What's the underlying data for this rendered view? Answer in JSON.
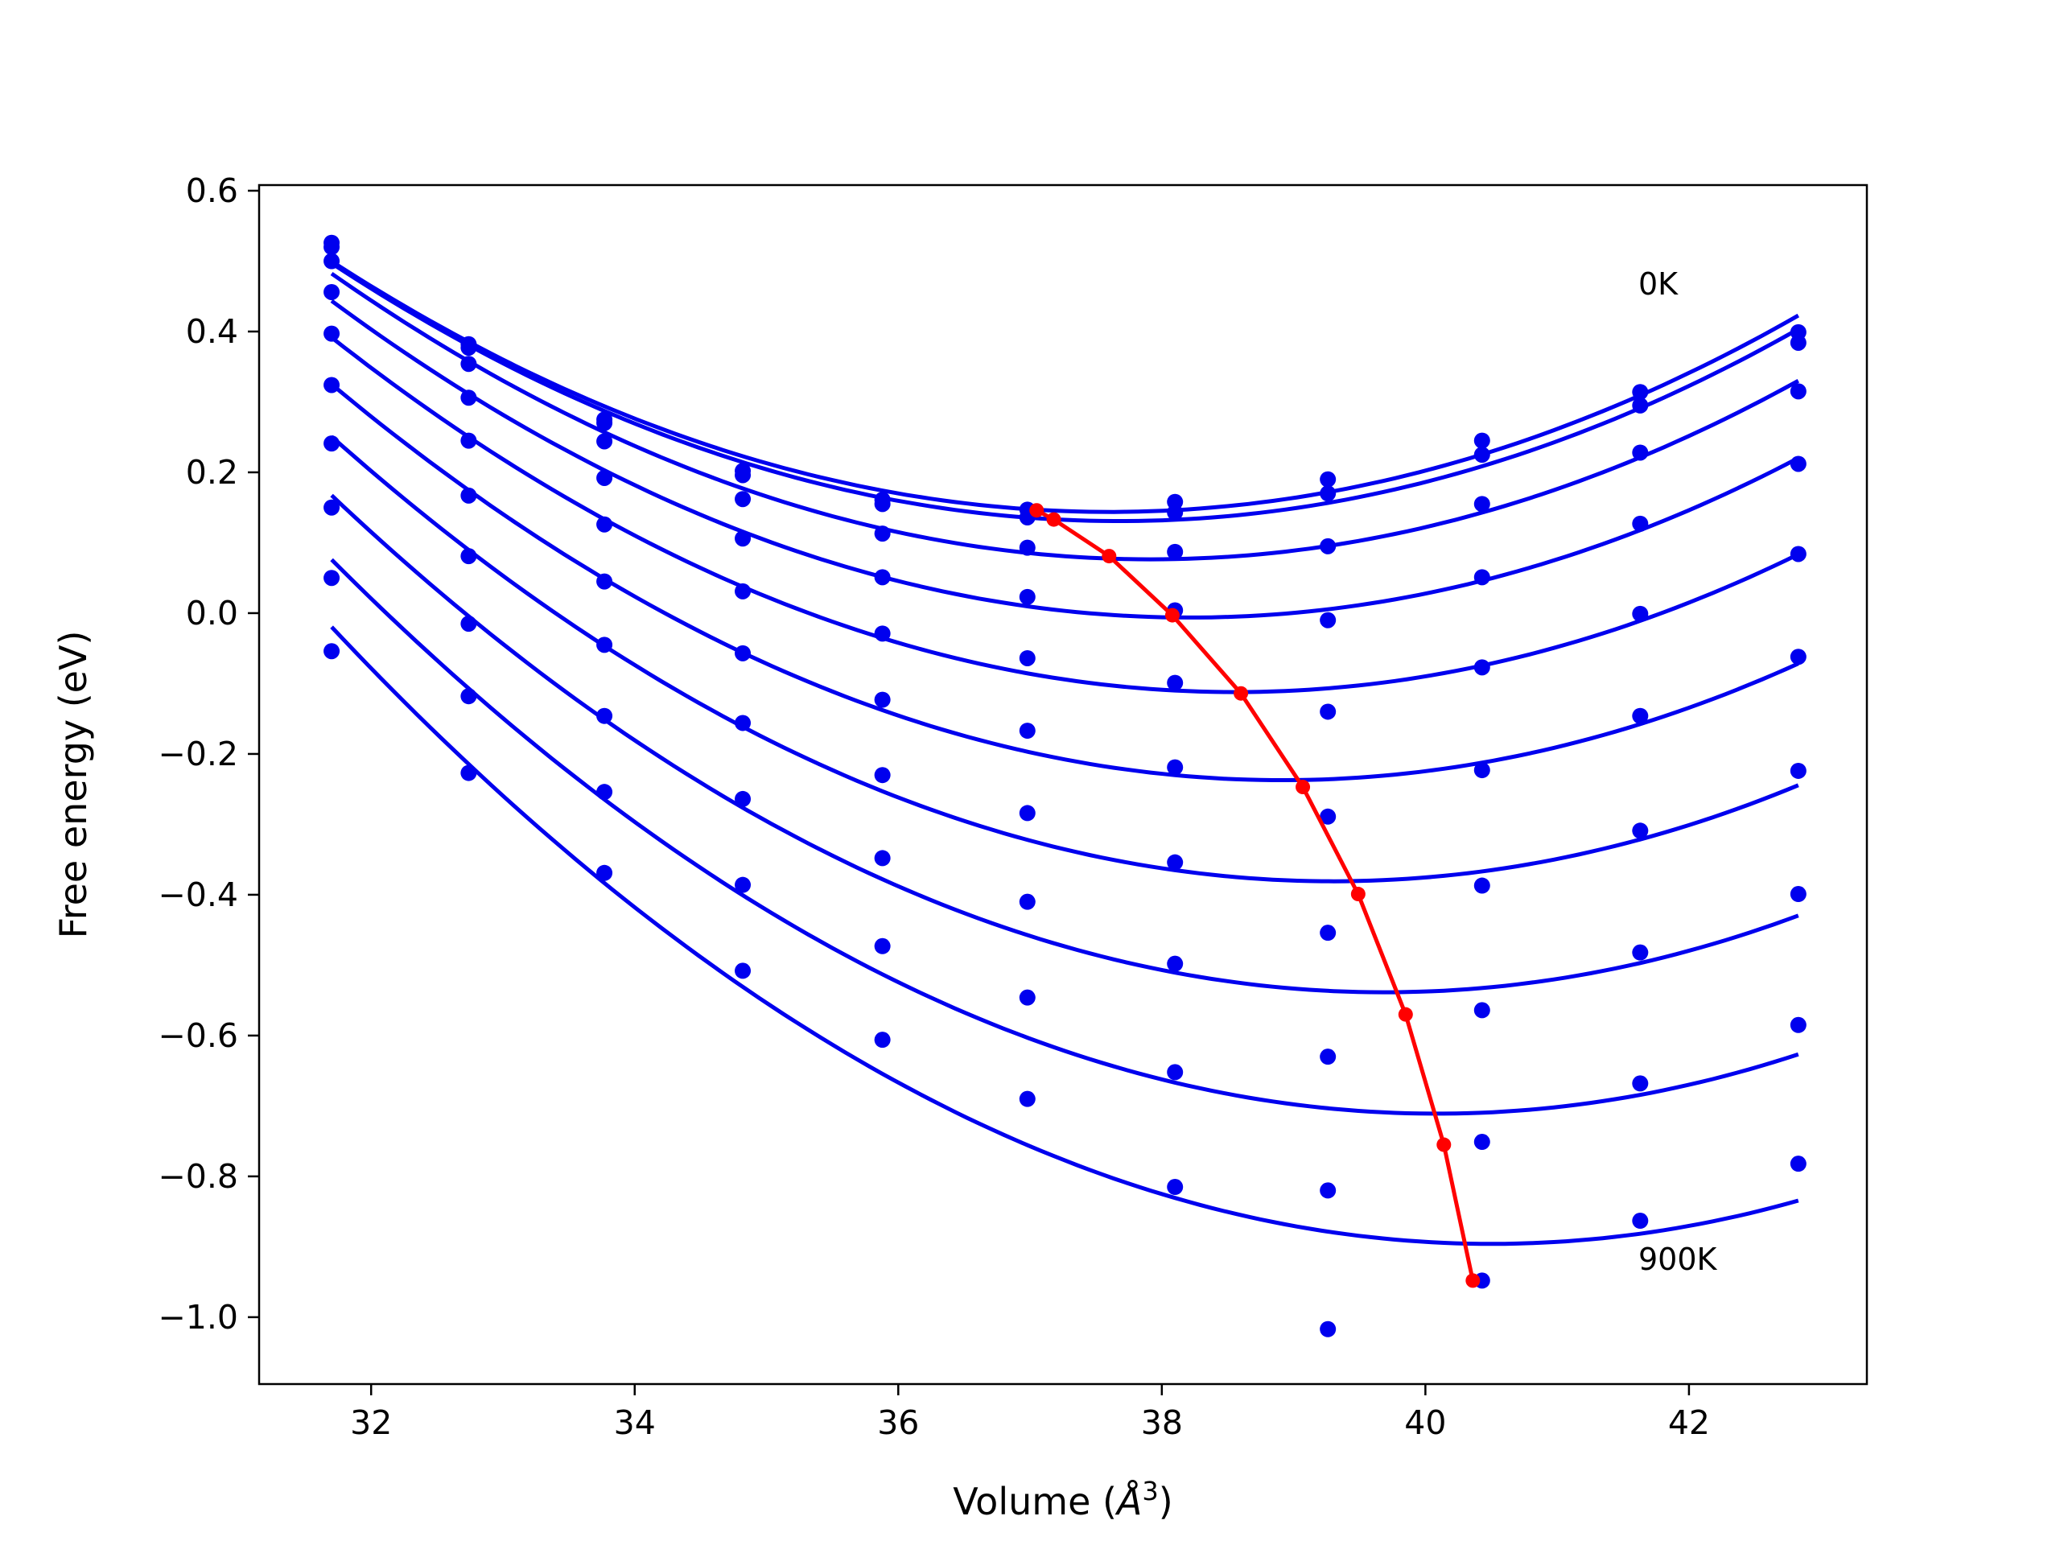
{
  "chart_data": {
    "type": "scatter",
    "title": "",
    "xlabel_prefix": "Volume (",
    "xlabel_unit": "Å",
    "xlabel_sup": "3",
    "xlabel_suffix": ")",
    "ylabel": "Free energy (eV)",
    "xlim": [
      31.15,
      43.35
    ],
    "ylim": [
      -1.095,
      0.608
    ],
    "xticks": [
      32,
      34,
      36,
      38,
      40,
      42
    ],
    "xtick_labels": [
      "32",
      "34",
      "36",
      "38",
      "40",
      "42"
    ],
    "yticks": [
      0.6,
      0.4,
      0.2,
      0.0,
      -0.2,
      -0.4,
      -0.6,
      -0.8,
      -1.0
    ],
    "ytick_labels": [
      "0.6",
      "0.4",
      "0.2",
      "0.0",
      "−0.2",
      "−0.4",
      "−0.6",
      "−0.8",
      "−1.0"
    ],
    "grid": false,
    "volumes": [
      31.7,
      32.74,
      33.77,
      34.82,
      35.88,
      36.98,
      38.1,
      39.26,
      40.43,
      41.63,
      42.83
    ],
    "series": [
      {
        "values": [
          0.526,
          0.382,
          0.275,
          0.202,
          0.161,
          0.147,
          0.158,
          0.19,
          0.245,
          0.314,
          0.399
        ]
      },
      {
        "values": [
          0.52,
          0.377,
          0.27,
          0.196,
          0.155,
          0.136,
          0.143,
          0.17,
          0.225,
          0.295,
          0.384
        ]
      },
      {
        "values": [
          0.5,
          0.354,
          0.244,
          0.162,
          0.113,
          0.093,
          0.087,
          0.095,
          0.155,
          0.228,
          0.315
        ]
      },
      {
        "values": [
          0.456,
          0.306,
          0.192,
          0.106,
          0.051,
          0.023,
          0.004,
          -0.01,
          0.051,
          0.127,
          0.212
        ]
      },
      {
        "values": [
          0.397,
          0.245,
          0.126,
          0.031,
          -0.029,
          -0.064,
          -0.099,
          -0.14,
          -0.077,
          -0.001,
          0.084
        ]
      },
      {
        "values": [
          0.324,
          0.167,
          0.045,
          -0.057,
          -0.123,
          -0.167,
          -0.219,
          -0.289,
          -0.223,
          -0.146,
          -0.062
        ]
      },
      {
        "values": [
          0.241,
          0.081,
          -0.045,
          -0.156,
          -0.23,
          -0.284,
          -0.354,
          -0.454,
          -0.387,
          -0.309,
          -0.224
        ]
      },
      {
        "values": [
          0.15,
          -0.015,
          -0.146,
          -0.264,
          -0.348,
          -0.41,
          -0.498,
          -0.63,
          -0.564,
          -0.482,
          -0.399
        ]
      },
      {
        "values": [
          0.05,
          -0.118,
          -0.254,
          -0.386,
          -0.473,
          -0.546,
          -0.652,
          -0.82,
          -0.751,
          -0.668,
          -0.585
        ]
      },
      {
        "values": [
          -0.054,
          -0.227,
          -0.369,
          -0.508,
          -0.606,
          -0.69,
          -0.815,
          -1.017,
          -0.948,
          -0.863,
          -0.782
        ]
      }
    ],
    "minima": {
      "x": [
        37.05,
        37.18,
        37.6,
        38.08,
        38.6,
        39.07,
        39.49,
        39.85,
        40.14,
        40.36
      ],
      "y": [
        0.146,
        0.133,
        0.081,
        -0.003,
        -0.114,
        -0.247,
        -0.399,
        -0.57,
        -0.755,
        -0.948
      ]
    },
    "annotations": {
      "top": "0K",
      "bottom": "900K"
    },
    "colors": {
      "fit": "#0000ee",
      "points": "#0000ee",
      "minima": "#ff0000",
      "axes": "#000000"
    }
  }
}
